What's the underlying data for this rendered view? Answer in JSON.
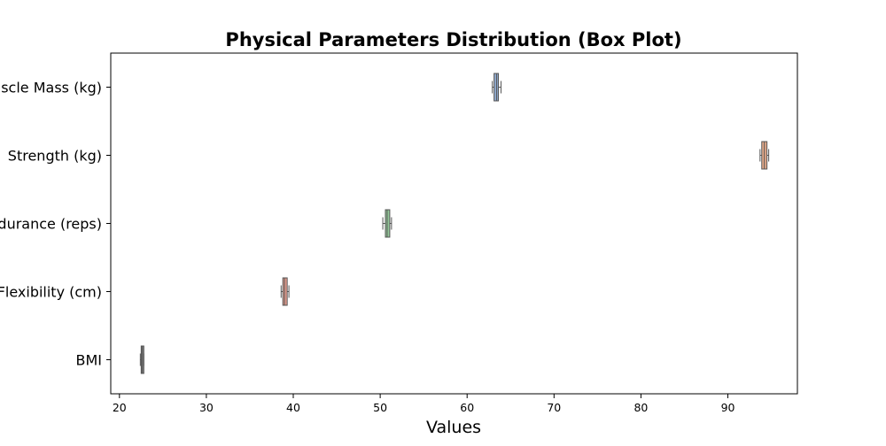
{
  "chart_data": {
    "type": "box",
    "title": "Physical Parameters Distribution (Box Plot)",
    "xlabel": "Values",
    "ylabel": "",
    "orientation": "horizontal",
    "xlim": [
      19,
      98
    ],
    "xticks": [
      20,
      30,
      40,
      50,
      60,
      70,
      80,
      90
    ],
    "grid": false,
    "categories": [
      "Muscle Mass (kg)",
      "Strength (kg)",
      "Endurance (reps)",
      "Flexibility (cm)",
      "BMI"
    ],
    "series": [
      {
        "category": "Muscle Mass (kg)",
        "min": 62.9,
        "q1": 63.1,
        "median": 63.4,
        "q3": 63.6,
        "max": 63.9,
        "color": "#8fa8cc"
      },
      {
        "category": "Strength (kg)",
        "min": 93.7,
        "q1": 93.9,
        "median": 94.2,
        "q3": 94.5,
        "max": 94.7,
        "color": "#e5a989"
      },
      {
        "category": "Endurance (reps)",
        "min": 50.3,
        "q1": 50.6,
        "median": 50.8,
        "q3": 51.1,
        "max": 51.3,
        "color": "#94c99a"
      },
      {
        "category": "Flexibility (cm)",
        "min": 38.6,
        "q1": 38.8,
        "median": 39.0,
        "q3": 39.3,
        "max": 39.5,
        "color": "#e59d8e"
      },
      {
        "category": "BMI",
        "min": 22.4,
        "q1": 22.5,
        "median": 22.6,
        "q3": 22.7,
        "max": 22.8,
        "color": "#808080"
      }
    ]
  }
}
